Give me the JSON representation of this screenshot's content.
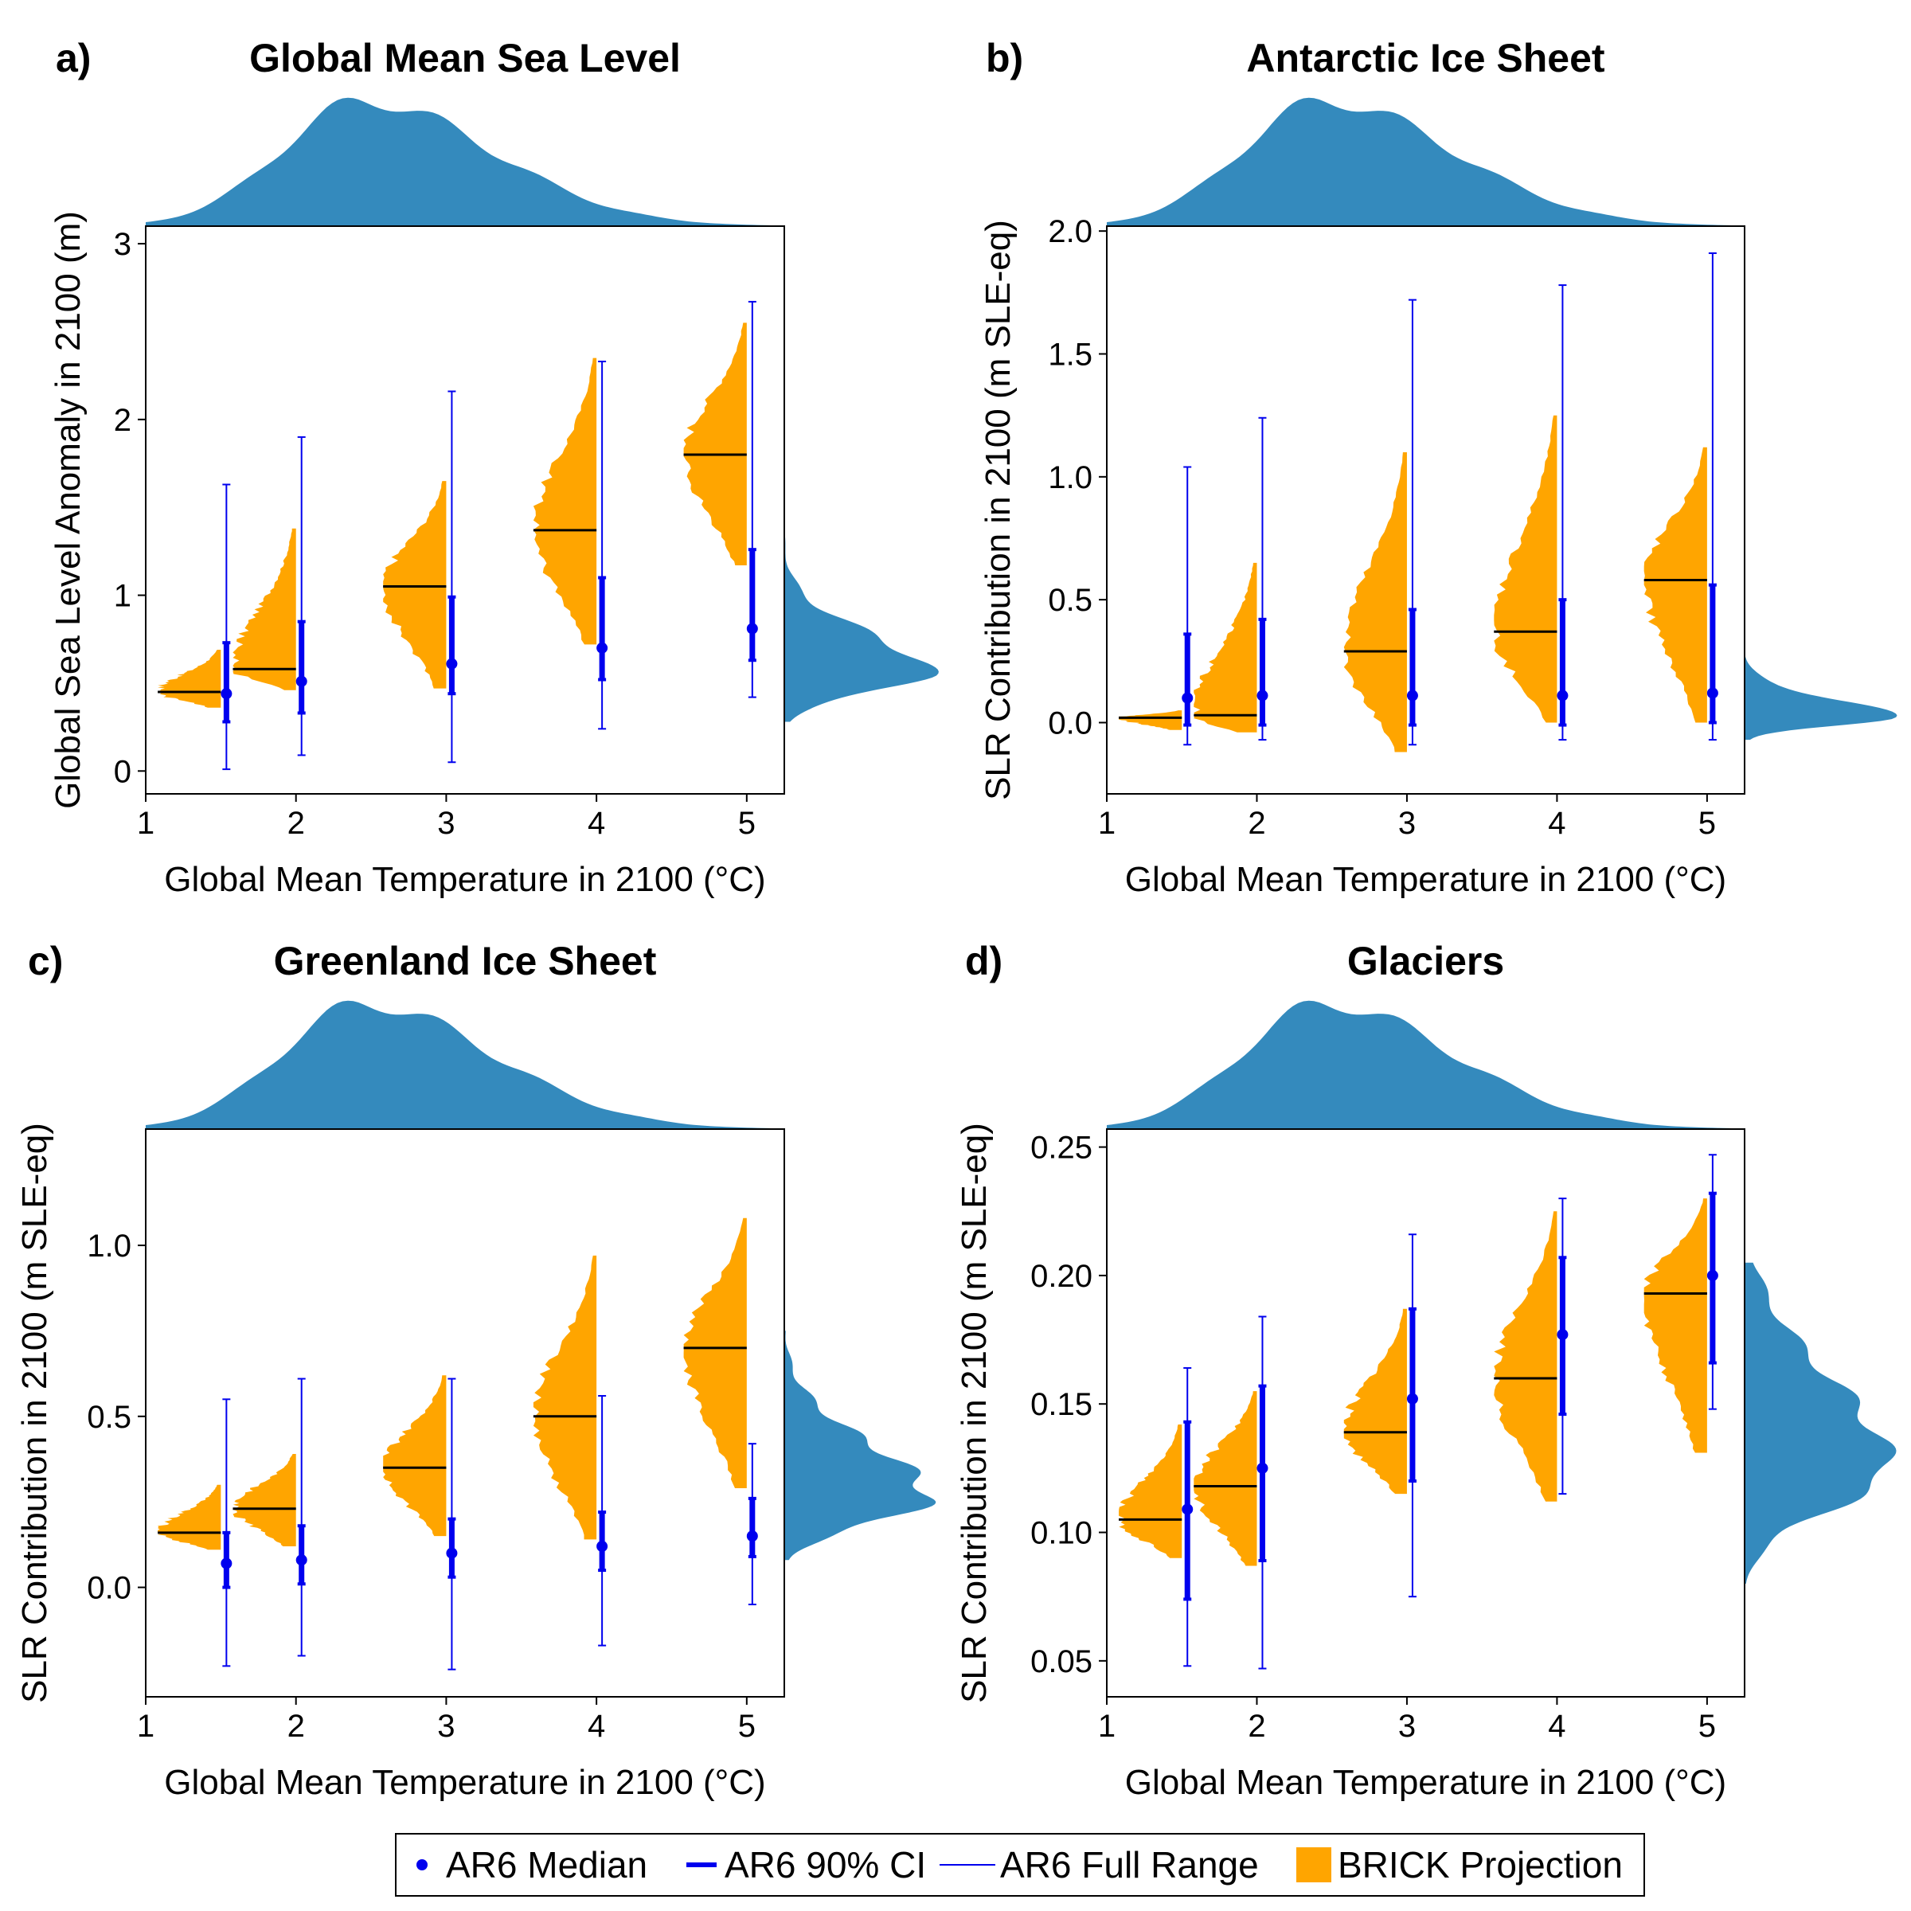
{
  "colors": {
    "brick": "#FFA500",
    "ar6": "#0000EE",
    "marginal": "#348ABD",
    "median_line": "#000000"
  },
  "legend": {
    "items": [
      {
        "label": "AR6 Median",
        "marker": "dot"
      },
      {
        "label": "AR6 90% CI",
        "marker": "thick-line"
      },
      {
        "label": "AR6 Full Range",
        "marker": "thin-line"
      },
      {
        "label": "BRICK Projection",
        "marker": "box"
      }
    ]
  },
  "chart_data": [
    {
      "type": "violin",
      "letter": "a)",
      "title": "Global Mean Sea Level",
      "xlabel": "Global Mean Temperature in 2100 (°C)",
      "ylabel": "Global Sea Level Anomaly in 2100 (m)",
      "xlim": [
        1,
        5.25
      ],
      "ylim": [
        -0.13,
        3.1
      ],
      "xticks": [
        1,
        2,
        3,
        4,
        5
      ],
      "yticks": [
        0,
        1,
        2,
        3
      ],
      "ytick_labels": [
        "0",
        "1",
        "2",
        "3"
      ],
      "brick": [
        {
          "temperature": 1.5,
          "median": 0.45,
          "min": 0.36,
          "max": 0.69
        },
        {
          "temperature": 2,
          "median": 0.58,
          "min": 0.46,
          "max": 1.38
        },
        {
          "temperature": 3,
          "median": 1.05,
          "min": 0.47,
          "max": 1.65
        },
        {
          "temperature": 4,
          "median": 1.37,
          "min": 0.72,
          "max": 2.35
        },
        {
          "temperature": 5,
          "median": 1.8,
          "min": 1.17,
          "max": 2.55
        }
      ],
      "ar6": [
        {
          "temperature": 1.5,
          "median": 0.44,
          "ci_low": 0.28,
          "ci_high": 0.73,
          "range_low": 0.01,
          "range_high": 1.63
        },
        {
          "temperature": 2,
          "median": 0.51,
          "ci_low": 0.33,
          "ci_high": 0.85,
          "range_low": 0.09,
          "range_high": 1.9
        },
        {
          "temperature": 3,
          "median": 0.61,
          "ci_low": 0.44,
          "ci_high": 0.99,
          "range_low": 0.05,
          "range_high": 2.16
        },
        {
          "temperature": 4,
          "median": 0.7,
          "ci_low": 0.52,
          "ci_high": 1.1,
          "range_low": 0.24,
          "range_high": 2.33
        },
        {
          "temperature": 5,
          "median": 0.81,
          "ci_low": 0.63,
          "ci_high": 1.26,
          "range_low": 0.42,
          "range_high": 2.67
        }
      ],
      "marginal_y": {
        "peak_value": 0.55,
        "spread": 0.23,
        "low_value": 0.28,
        "high_value": 1.88
      }
    },
    {
      "type": "violin",
      "letter": "b)",
      "title": "Antarctic Ice Sheet",
      "xlabel": "Global Mean Temperature in 2100 (°C)",
      "ylabel": "SLR Contribution in 2100 (m SLE-eq)",
      "xlim": [
        1,
        5.25
      ],
      "ylim": [
        -0.29,
        2.02
      ],
      "xticks": [
        1,
        2,
        3,
        4,
        5
      ],
      "yticks": [
        0,
        0.5,
        1,
        1.5,
        2
      ],
      "ytick_labels": [
        "0.0",
        "0.5",
        "1.0",
        "1.5",
        "2.0"
      ],
      "brick": [
        {
          "temperature": 1.5,
          "median": 0.02,
          "min": -0.03,
          "max": 0.05
        },
        {
          "temperature": 2,
          "median": 0.03,
          "min": -0.04,
          "max": 0.65
        },
        {
          "temperature": 3,
          "median": 0.29,
          "min": -0.12,
          "max": 1.1
        },
        {
          "temperature": 4,
          "median": 0.37,
          "min": 0.0,
          "max": 1.25
        },
        {
          "temperature": 5,
          "median": 0.58,
          "min": 0.0,
          "max": 1.12
        }
      ],
      "ar6": [
        {
          "temperature": 1.5,
          "median": 0.1,
          "ci_low": -0.01,
          "ci_high": 0.36,
          "range_low": -0.09,
          "range_high": 1.04
        },
        {
          "temperature": 2,
          "median": 0.11,
          "ci_low": -0.01,
          "ci_high": 0.42,
          "range_low": -0.07,
          "range_high": 1.24
        },
        {
          "temperature": 3,
          "median": 0.11,
          "ci_low": -0.01,
          "ci_high": 0.46,
          "range_low": -0.09,
          "range_high": 1.72
        },
        {
          "temperature": 4,
          "median": 0.11,
          "ci_low": -0.01,
          "ci_high": 0.5,
          "range_low": -0.07,
          "range_high": 1.78
        },
        {
          "temperature": 5,
          "median": 0.12,
          "ci_low": 0.0,
          "ci_high": 0.56,
          "range_low": -0.07,
          "range_high": 1.91
        }
      ],
      "marginal_y": {
        "peak_value": 0.02,
        "spread": 0.08,
        "low_value": -0.07,
        "high_value": 1.0
      }
    },
    {
      "type": "violin",
      "letter": "c)",
      "title": "Greenland Ice Sheet",
      "xlabel": "Global Mean Temperature in 2100 (°C)",
      "ylabel": "SLR Contribution in 2100 (m SLE-eq)",
      "xlim": [
        1,
        5.25
      ],
      "ylim": [
        -0.32,
        1.34
      ],
      "xticks": [
        1,
        2,
        3,
        4,
        5
      ],
      "yticks": [
        0,
        0.5,
        1
      ],
      "ytick_labels": [
        "0.0",
        "0.5",
        "1.0"
      ],
      "brick": [
        {
          "temperature": 1.5,
          "median": 0.16,
          "min": 0.11,
          "max": 0.3
        },
        {
          "temperature": 2,
          "median": 0.23,
          "min": 0.12,
          "max": 0.39
        },
        {
          "temperature": 3,
          "median": 0.35,
          "min": 0.15,
          "max": 0.62
        },
        {
          "temperature": 4,
          "median": 0.5,
          "min": 0.14,
          "max": 0.97
        },
        {
          "temperature": 5,
          "median": 0.7,
          "min": 0.29,
          "max": 1.08
        }
      ],
      "ar6": [
        {
          "temperature": 1.5,
          "median": 0.07,
          "ci_low": 0.0,
          "ci_high": 0.16,
          "range_low": -0.23,
          "range_high": 0.55
        },
        {
          "temperature": 2,
          "median": 0.08,
          "ci_low": 0.01,
          "ci_high": 0.18,
          "range_low": -0.2,
          "range_high": 0.61
        },
        {
          "temperature": 3,
          "median": 0.1,
          "ci_low": 0.03,
          "ci_high": 0.2,
          "range_low": -0.24,
          "range_high": 0.61
        },
        {
          "temperature": 4,
          "median": 0.12,
          "ci_low": 0.05,
          "ci_high": 0.22,
          "range_low": -0.17,
          "range_high": 0.56
        },
        {
          "temperature": 5,
          "median": 0.15,
          "ci_low": 0.09,
          "ci_high": 0.26,
          "range_low": -0.05,
          "range_high": 0.42
        }
      ],
      "marginal_y": {
        "peak_value": 0.26,
        "spread": 0.16,
        "low_value": 0.08,
        "high_value": 0.75
      }
    },
    {
      "type": "violin",
      "letter": "d)",
      "title": "Glaciers",
      "xlabel": "Global Mean Temperature in 2100 (°C)",
      "ylabel": "SLR Contribution in 2100 (m SLE-eq)",
      "xlim": [
        1,
        5.25
      ],
      "ylim": [
        0.036,
        0.257
      ],
      "xticks": [
        1,
        2,
        3,
        4,
        5
      ],
      "yticks": [
        0.05,
        0.1,
        0.15,
        0.2,
        0.25
      ],
      "ytick_labels": [
        "0.05",
        "0.10",
        "0.15",
        "0.20",
        "0.25"
      ],
      "brick": [
        {
          "temperature": 1.5,
          "median": 0.105,
          "min": 0.09,
          "max": 0.142
        },
        {
          "temperature": 2,
          "median": 0.118,
          "min": 0.087,
          "max": 0.155
        },
        {
          "temperature": 3,
          "median": 0.139,
          "min": 0.115,
          "max": 0.187
        },
        {
          "temperature": 4,
          "median": 0.16,
          "min": 0.112,
          "max": 0.225
        },
        {
          "temperature": 5,
          "median": 0.193,
          "min": 0.131,
          "max": 0.23
        }
      ],
      "ar6": [
        {
          "temperature": 1.5,
          "median": 0.109,
          "ci_low": 0.074,
          "ci_high": 0.143,
          "range_low": 0.048,
          "range_high": 0.164
        },
        {
          "temperature": 2,
          "median": 0.125,
          "ci_low": 0.089,
          "ci_high": 0.157,
          "range_low": 0.047,
          "range_high": 0.184
        },
        {
          "temperature": 3,
          "median": 0.152,
          "ci_low": 0.12,
          "ci_high": 0.187,
          "range_low": 0.075,
          "range_high": 0.216
        },
        {
          "temperature": 4,
          "median": 0.177,
          "ci_low": 0.146,
          "ci_high": 0.207,
          "range_low": 0.115,
          "range_high": 0.23
        },
        {
          "temperature": 5,
          "median": 0.2,
          "ci_low": 0.166,
          "ci_high": 0.232,
          "range_low": 0.148,
          "range_high": 0.247
        }
      ],
      "marginal_y": {
        "peak_value": 0.125,
        "spread": 0.035,
        "low_value": 0.08,
        "high_value": 0.205
      }
    }
  ]
}
